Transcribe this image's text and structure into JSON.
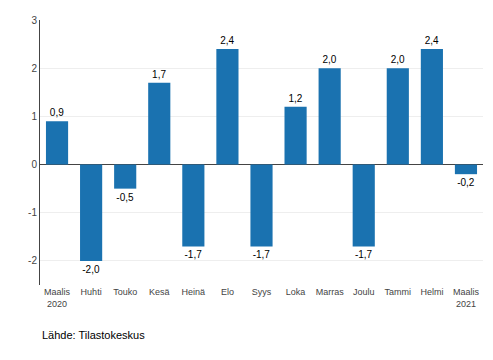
{
  "chart_data": {
    "type": "bar",
    "categories": [
      "Maalis\n2020",
      "Huhti",
      "Touko",
      "Kesä",
      "Heinä",
      "Elo",
      "Syys",
      "Loka",
      "Marras",
      "Joulu",
      "Tammi",
      "Helmi",
      "Maalis\n2021"
    ],
    "values": [
      0.9,
      -2.0,
      -0.5,
      1.7,
      -1.7,
      2.4,
      -1.7,
      1.2,
      2.0,
      -1.7,
      2.0,
      2.4,
      -0.2
    ],
    "value_labels": [
      "0,9",
      "-2,0",
      "-0,5",
      "1,7",
      "-1,7",
      "2,4",
      "-1,7",
      "1,2",
      "2,0",
      "-1,7",
      "2,0",
      "2,4",
      "-0,2"
    ],
    "color": "#1a72b0",
    "ylim": [
      -2.5,
      3.0
    ],
    "yticks": [
      -2,
      -1,
      0,
      1,
      2,
      3
    ],
    "grid": true,
    "data_labels": true,
    "annotations": [
      "Lähde: Tilastokeskus"
    ]
  }
}
